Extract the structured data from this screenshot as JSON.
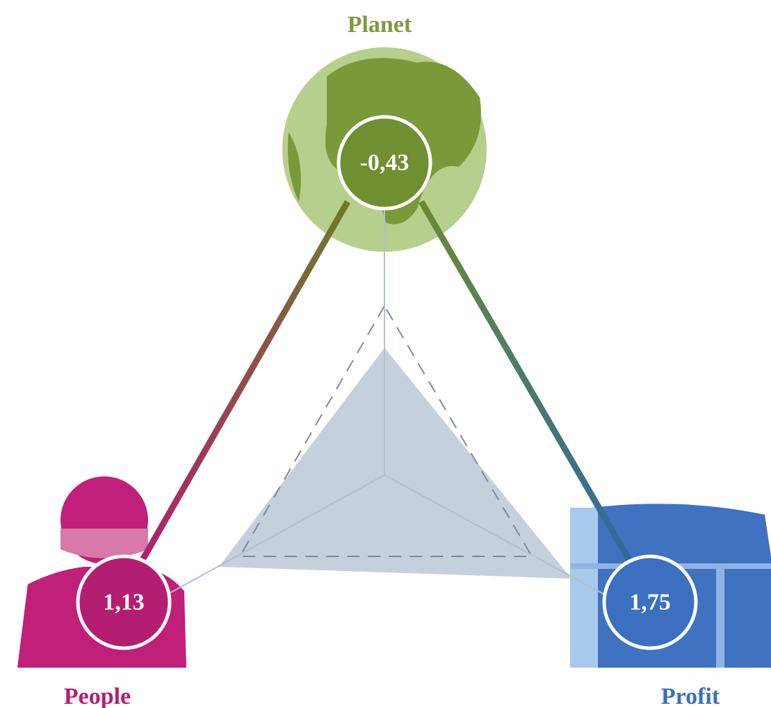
{
  "nodes": [
    {
      "label": "Planet",
      "value": "-0,43"
    },
    {
      "label": "People",
      "value": "1,13"
    },
    {
      "label": "Profit",
      "value": "1,75"
    }
  ]
}
